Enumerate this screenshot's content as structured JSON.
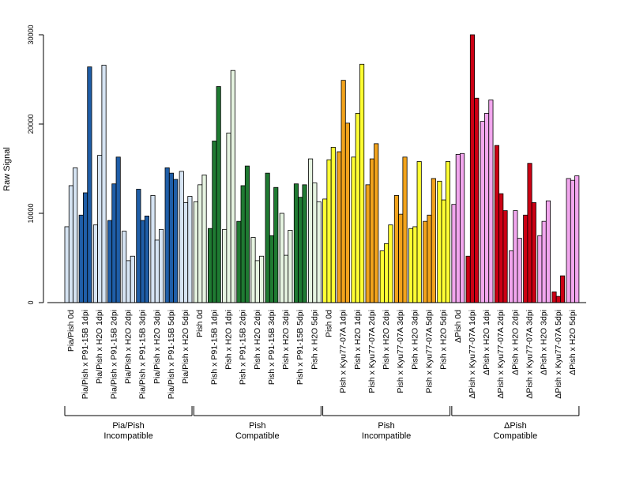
{
  "chart_data": {
    "type": "bar",
    "title": "",
    "xlabel": "",
    "ylabel": "Raw Signal",
    "ylim": [
      0,
      30000
    ],
    "yticks": [
      0,
      10000,
      20000,
      30000
    ],
    "ytick_labels": [
      "0",
      "10000",
      "20000",
      "30000"
    ],
    "categories": [
      "Pia/Pish 0d",
      "Pia/Pish x P91-15B 1dpi",
      "Pia/Pish x H2O 1dpi",
      "Pia/Pish x P91-15B 2dpi",
      "Pia/Pish x H2O 2dpi",
      "Pia/Pish x P91-15B 3dpi",
      "Pia/Pish x H2O 3dpi",
      "Pia/Pish x P91-15B 5dpi",
      "Pia/Pish x H2O 5dpi",
      "Pish 0d",
      "Pish x P91-15B 1dpi",
      "Pish x H2O 1dpi",
      "Pish x P91-15B 2dpi",
      "Pish x H2O 2dpi",
      "Pish x P91-15B 3dpi",
      "Pish x H2O 3dpi",
      "Pish x P91-15B 5dpi",
      "Pish x H2O 5dpi",
      "Pish 0d",
      "Pish x Kyu77-07A 1dpi",
      "Pish x H2O 1dpi",
      "Pish x Kyu77-07A 2dpi",
      "Pish x H2O 2dpi",
      "Pish x Kyu77-07A 3dpi",
      "Pish x H2O 3dpi",
      "Pish x Kyu77-07A 5dpi",
      "Pish x H2O 5dpi",
      "ΔPish 0d",
      "ΔPish x Kyu77-07A 1dpi",
      "ΔPish x H2O 1dpi",
      "ΔPish x Kyu77-07A 2dpi",
      "ΔPish x H2O 2dpi",
      "ΔPish x Kyu77-07A 3dpi",
      "ΔPish x H2O 3dpi",
      "ΔPish x Kyu77-07A 5dpi",
      "ΔPish x H2O 5dpi"
    ],
    "values": [
      [
        8500,
        13100,
        15100
      ],
      [
        9800,
        12300,
        26400
      ],
      [
        8700,
        16500,
        26600
      ],
      [
        9200,
        13300,
        16300
      ],
      [
        8000,
        4700,
        5200
      ],
      [
        12700,
        9200,
        9700
      ],
      [
        12000,
        7000,
        8200
      ],
      [
        15100,
        14500,
        13800
      ],
      [
        14700,
        11200,
        11900
      ],
      [
        11300,
        13200,
        14300
      ],
      [
        8300,
        18100,
        24200
      ],
      [
        8200,
        19000,
        26000
      ],
      [
        9100,
        13100,
        15300
      ],
      [
        7300,
        4700,
        5200
      ],
      [
        14500,
        7500,
        12900
      ],
      [
        10000,
        5300,
        8100
      ],
      [
        13300,
        11800,
        13200
      ],
      [
        16100,
        13400,
        11300
      ],
      [
        11600,
        16000,
        17400
      ],
      [
        16900,
        24900,
        20100
      ],
      [
        16300,
        21200,
        26700
      ],
      [
        13200,
        16100,
        17800
      ],
      [
        5800,
        6600,
        8700
      ],
      [
        12000,
        9900,
        16300
      ],
      [
        8300,
        8500,
        15800
      ],
      [
        9100,
        9800,
        13900
      ],
      [
        13600,
        11500,
        15800
      ],
      [
        11000,
        16600,
        16700
      ],
      [
        5200,
        30000,
        22900
      ],
      [
        20300,
        21200,
        22700
      ],
      [
        17600,
        12200,
        10300
      ],
      [
        5800,
        10300,
        7200
      ],
      [
        9800,
        15600,
        11200
      ],
      [
        7500,
        9100,
        11400
      ],
      [
        1200,
        700,
        3000
      ],
      [
        13900,
        13700,
        14200
      ]
    ],
    "groups": [
      {
        "label": "Pia/Pish\nIncompatible",
        "start": 0,
        "end": 8,
        "dark": "#1f5ea8",
        "light": "#d6e4f3"
      },
      {
        "label": "Pish\nCompatible",
        "start": 9,
        "end": 17,
        "dark": "#1f7a32",
        "light": "#e6f4e1"
      },
      {
        "label": "Pish\nIncompatible",
        "start": 18,
        "end": 26,
        "dark": "#f2a31c",
        "light": "#ffff33"
      },
      {
        "label": "ΔPish\nCompatible",
        "start": 27,
        "end": 35,
        "dark": "#cc0014",
        "light": "#f2a6ee"
      }
    ],
    "group_labels": [
      {
        "line1": "Pia/Pish",
        "line2": "Incompatible"
      },
      {
        "line1": "Pish",
        "line2": "Compatible"
      },
      {
        "line1": "Pish",
        "line2": "Incompatible"
      },
      {
        "line1": "ΔPish",
        "line2": "Compatible"
      }
    ],
    "grid": false,
    "legend": "none"
  }
}
